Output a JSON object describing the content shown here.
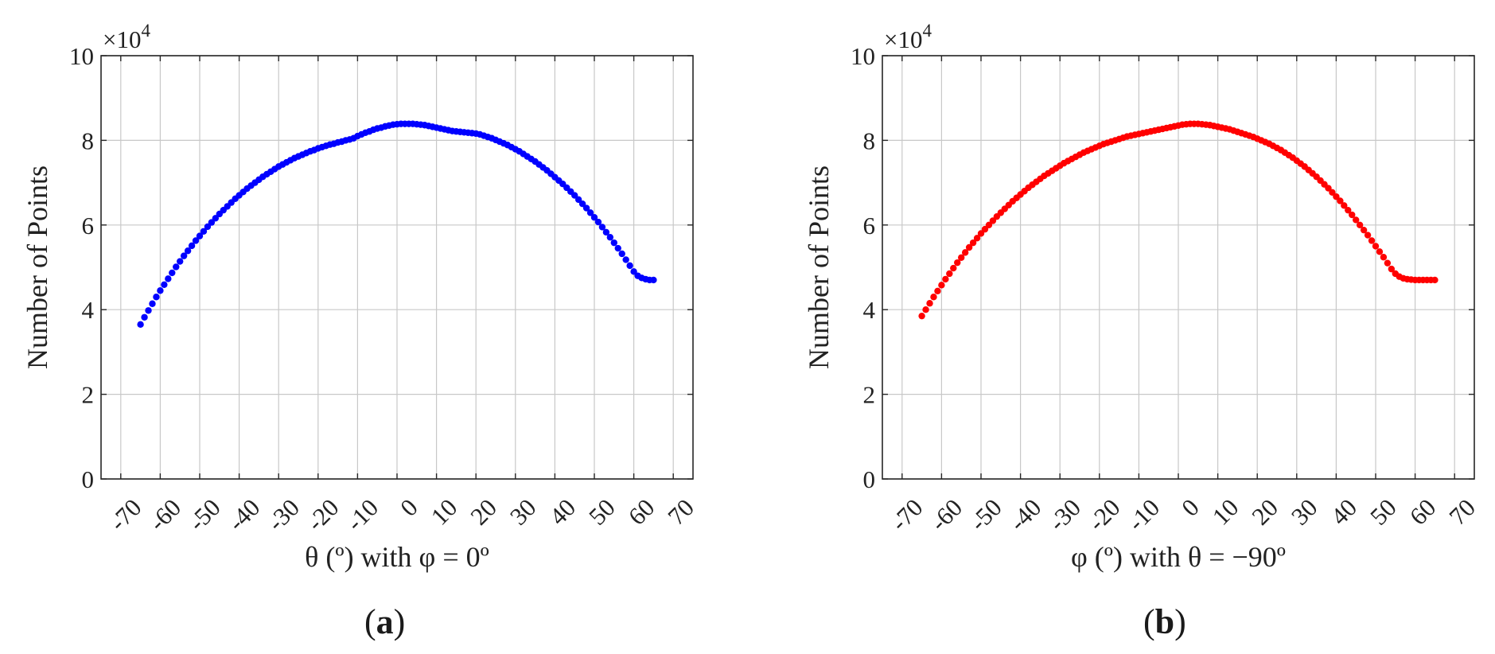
{
  "chart_data": [
    {
      "type": "scatter",
      "panel_label": "a",
      "xlabel": "θ (º) with φ = 0º",
      "ylabel": "Number of Points",
      "y_exponent_label": "×10",
      "y_exponent_power": "4",
      "xlim": [
        -75,
        75
      ],
      "ylim": [
        0,
        10
      ],
      "xticks": [
        -70,
        -60,
        -50,
        -40,
        -30,
        -20,
        -10,
        0,
        10,
        20,
        30,
        40,
        50,
        60,
        70
      ],
      "xtick_labels": [
        "-70",
        "-60",
        "-50",
        "-40",
        "-30",
        "-20",
        "-10",
        "0",
        "10",
        "20",
        "30",
        "40",
        "50",
        "60",
        "70"
      ],
      "yticks": [
        0,
        2,
        4,
        6,
        8,
        10
      ],
      "ytick_labels": [
        "0",
        "2",
        "4",
        "6",
        "8",
        "10"
      ],
      "grid": true,
      "series": [
        {
          "color": "#0000ff",
          "x": [
            -65,
            -64,
            -63,
            -62,
            -61,
            -60,
            -59,
            -58,
            -57,
            -56,
            -55,
            -54,
            -53,
            -52,
            -51,
            -50,
            -49,
            -48,
            -47,
            -46,
            -45,
            -44,
            -43,
            -42,
            -41,
            -40,
            -39,
            -38,
            -37,
            -36,
            -35,
            -34,
            -33,
            -32,
            -31,
            -30,
            -29,
            -28,
            -27,
            -26,
            -25,
            -24,
            -23,
            -22,
            -21,
            -20,
            -19,
            -18,
            -17,
            -16,
            -15,
            -14,
            -13,
            -12,
            -11,
            -10,
            -9,
            -8,
            -7,
            -6,
            -5,
            -4,
            -3,
            -2,
            -1,
            0,
            1,
            2,
            3,
            4,
            5,
            6,
            7,
            8,
            9,
            10,
            11,
            12,
            13,
            14,
            15,
            16,
            17,
            18,
            19,
            20,
            21,
            22,
            23,
            24,
            25,
            26,
            27,
            28,
            29,
            30,
            31,
            32,
            33,
            34,
            35,
            36,
            37,
            38,
            39,
            40,
            41,
            42,
            43,
            44,
            45,
            46,
            47,
            48,
            49,
            50,
            51,
            52,
            53,
            54,
            55,
            56,
            57,
            58,
            59,
            60,
            61,
            62,
            63,
            64,
            65
          ],
          "y": [
            3.65,
            3.82,
            3.98,
            4.14,
            4.3,
            4.45,
            4.59,
            4.73,
            4.87,
            5.01,
            5.14,
            5.27,
            5.39,
            5.51,
            5.63,
            5.74,
            5.85,
            5.96,
            6.06,
            6.16,
            6.26,
            6.35,
            6.44,
            6.53,
            6.62,
            6.7,
            6.78,
            6.86,
            6.93,
            7.0,
            7.07,
            7.14,
            7.2,
            7.26,
            7.32,
            7.38,
            7.43,
            7.48,
            7.53,
            7.58,
            7.62,
            7.66,
            7.7,
            7.74,
            7.77,
            7.81,
            7.84,
            7.87,
            7.9,
            7.92,
            7.95,
            7.97,
            8.0,
            8.02,
            8.05,
            8.1,
            8.14,
            8.18,
            8.21,
            8.25,
            8.28,
            8.3,
            8.33,
            8.35,
            8.37,
            8.38,
            8.39,
            8.39,
            8.39,
            8.39,
            8.38,
            8.37,
            8.36,
            8.34,
            8.32,
            8.3,
            8.28,
            8.26,
            8.24,
            8.22,
            8.21,
            8.2,
            8.19,
            8.18,
            8.17,
            8.16,
            8.14,
            8.11,
            8.08,
            8.05,
            8.01,
            7.97,
            7.93,
            7.89,
            7.84,
            7.79,
            7.74,
            7.68,
            7.62,
            7.56,
            7.5,
            7.43,
            7.36,
            7.29,
            7.21,
            7.13,
            7.05,
            6.97,
            6.88,
            6.79,
            6.7,
            6.6,
            6.5,
            6.4,
            6.29,
            6.18,
            6.07,
            5.95,
            5.83,
            5.71,
            5.58,
            5.45,
            5.32,
            5.18,
            5.04,
            4.9,
            4.8,
            4.75,
            4.72,
            4.7,
            4.7
          ]
        }
      ]
    },
    {
      "type": "scatter",
      "panel_label": "b",
      "xlabel": "φ (º) with θ = −90º",
      "ylabel": "Number of Points",
      "y_exponent_label": "×10",
      "y_exponent_power": "4",
      "xlim": [
        -75,
        75
      ],
      "ylim": [
        0,
        10
      ],
      "xticks": [
        -70,
        -60,
        -50,
        -40,
        -30,
        -20,
        -10,
        0,
        10,
        20,
        30,
        40,
        50,
        60,
        70
      ],
      "xtick_labels": [
        "-70",
        "-60",
        "-50",
        "-40",
        "-30",
        "-20",
        "-10",
        "0",
        "10",
        "20",
        "30",
        "40",
        "50",
        "60",
        "70"
      ],
      "yticks": [
        0,
        2,
        4,
        6,
        8,
        10
      ],
      "ytick_labels": [
        "0",
        "2",
        "4",
        "6",
        "8",
        "10"
      ],
      "grid": true,
      "series": [
        {
          "color": "#ff0000",
          "x": [
            -65,
            -64,
            -63,
            -62,
            -61,
            -60,
            -59,
            -58,
            -57,
            -56,
            -55,
            -54,
            -53,
            -52,
            -51,
            -50,
            -49,
            -48,
            -47,
            -46,
            -45,
            -44,
            -43,
            -42,
            -41,
            -40,
            -39,
            -38,
            -37,
            -36,
            -35,
            -34,
            -33,
            -32,
            -31,
            -30,
            -29,
            -28,
            -27,
            -26,
            -25,
            -24,
            -23,
            -22,
            -21,
            -20,
            -19,
            -18,
            -17,
            -16,
            -15,
            -14,
            -13,
            -12,
            -11,
            -10,
            -9,
            -8,
            -7,
            -6,
            -5,
            -4,
            -3,
            -2,
            -1,
            0,
            1,
            2,
            3,
            4,
            5,
            6,
            7,
            8,
            9,
            10,
            11,
            12,
            13,
            14,
            15,
            16,
            17,
            18,
            19,
            20,
            21,
            22,
            23,
            24,
            25,
            26,
            27,
            28,
            29,
            30,
            31,
            32,
            33,
            34,
            35,
            36,
            37,
            38,
            39,
            40,
            41,
            42,
            43,
            44,
            45,
            46,
            47,
            48,
            49,
            50,
            51,
            52,
            53,
            54,
            55,
            56,
            57,
            58,
            59,
            60,
            61,
            62,
            63,
            64,
            65
          ],
          "y": [
            3.85,
            4.0,
            4.15,
            4.3,
            4.44,
            4.58,
            4.72,
            4.85,
            4.98,
            5.11,
            5.23,
            5.35,
            5.47,
            5.58,
            5.69,
            5.8,
            5.9,
            6.0,
            6.1,
            6.2,
            6.29,
            6.38,
            6.47,
            6.56,
            6.64,
            6.72,
            6.8,
            6.88,
            6.95,
            7.02,
            7.09,
            7.16,
            7.22,
            7.28,
            7.34,
            7.4,
            7.46,
            7.51,
            7.56,
            7.61,
            7.66,
            7.71,
            7.75,
            7.79,
            7.83,
            7.87,
            7.91,
            7.94,
            7.97,
            8.0,
            8.03,
            8.06,
            8.09,
            8.11,
            8.13,
            8.15,
            8.17,
            8.19,
            8.21,
            8.23,
            8.25,
            8.27,
            8.29,
            8.31,
            8.33,
            8.35,
            8.37,
            8.38,
            8.39,
            8.39,
            8.39,
            8.38,
            8.37,
            8.36,
            8.34,
            8.32,
            8.3,
            8.28,
            8.26,
            8.23,
            8.2,
            8.17,
            8.14,
            8.11,
            8.08,
            8.04,
            8.0,
            7.96,
            7.92,
            7.87,
            7.82,
            7.77,
            7.71,
            7.65,
            7.59,
            7.52,
            7.45,
            7.38,
            7.3,
            7.22,
            7.14,
            7.05,
            6.96,
            6.87,
            6.77,
            6.67,
            6.57,
            6.46,
            6.35,
            6.24,
            6.12,
            6.0,
            5.88,
            5.76,
            5.63,
            5.5,
            5.37,
            5.24,
            5.1,
            4.96,
            4.85,
            4.78,
            4.74,
            4.72,
            4.71,
            4.7,
            4.7,
            4.7,
            4.7,
            4.7,
            4.7
          ]
        }
      ]
    }
  ]
}
